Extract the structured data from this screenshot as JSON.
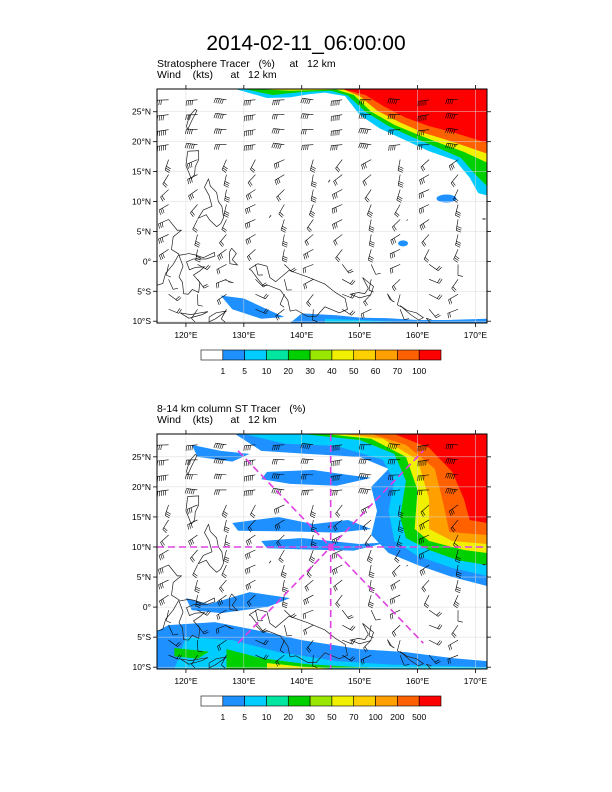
{
  "title": "2014-02-11_06:00:00",
  "panels": [
    {
      "label_line1": "Stratosphere Tracer   (%)     at   12 km",
      "label_line2": "Wind    (kts)      at   12 km",
      "colorbar_labels": [
        "1",
        "5",
        "10",
        "20",
        "30",
        "40",
        "50",
        "60",
        "70",
        "100"
      ],
      "colorbar_colors": [
        "#ffffff",
        "#1e90ff",
        "#00ccff",
        "#00e5a0",
        "#00d000",
        "#99e600",
        "#f0f000",
        "#ffd000",
        "#ffa000",
        "#ff6000",
        "#ff0000"
      ]
    },
    {
      "label_line1": "8-14 km column ST Tracer   (%)",
      "label_line2": "Wind    (kts)      at   12 km",
      "colorbar_labels": [
        "1",
        "5",
        "10",
        "20",
        "30",
        "50",
        "70",
        "100",
        "200",
        "500"
      ],
      "colorbar_colors": [
        "#ffffff",
        "#1e90ff",
        "#00ccff",
        "#00e5a0",
        "#00d000",
        "#99e600",
        "#f0f000",
        "#ffd000",
        "#ffa000",
        "#ff6000",
        "#ff0000"
      ]
    }
  ],
  "map": {
    "lon_labels": [
      "120°E",
      "130°E",
      "140°E",
      "150°E",
      "160°E",
      "170°E"
    ],
    "lat_labels": [
      "25°N",
      "20°N",
      "15°N",
      "10°N",
      "5°N",
      "0°",
      "5°S",
      "10°S"
    ],
    "lon_values": [
      120,
      130,
      140,
      150,
      160,
      170
    ],
    "lat_values": [
      25,
      20,
      15,
      10,
      5,
      0,
      -5,
      -10
    ],
    "lon_range": [
      115,
      172
    ],
    "lat_range": [
      -10.3,
      28.8
    ],
    "cross_section_center": {
      "lon": 145,
      "lat": 10
    },
    "cross_section_color": "#e040e0"
  }
}
